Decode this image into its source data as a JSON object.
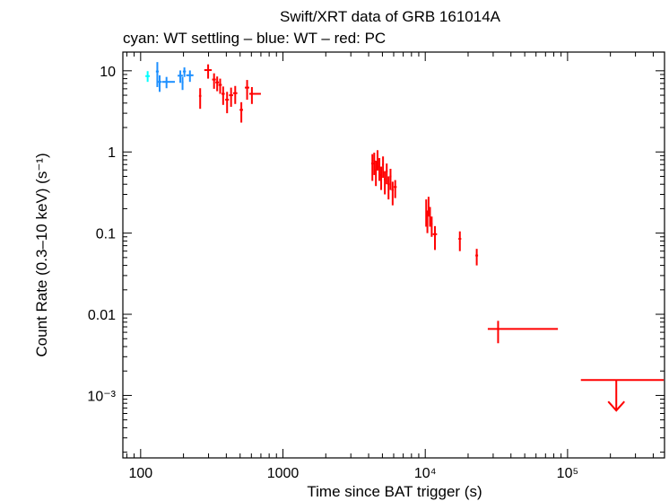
{
  "chart_data": {
    "type": "scatter",
    "title": "Swift/XRT data of GRB 161014A",
    "subtitle": "cyan: WT settling – blue: WT – red: PC",
    "xlabel": "Time since BAT trigger (s)",
    "ylabel": "Count Rate (0.3–10 keV) (s⁻¹)",
    "x_scale": "log",
    "y_scale": "log",
    "xlim": [
      75,
      480000
    ],
    "ylim": [
      0.00017,
      17
    ],
    "x_ticks": [
      {
        "value": 100,
        "label": "100"
      },
      {
        "value": 1000,
        "label": "1000"
      },
      {
        "value": 10000,
        "label": "10⁴"
      },
      {
        "value": 100000,
        "label": "10⁵"
      }
    ],
    "y_ticks": [
      {
        "value": 10,
        "label": "10"
      },
      {
        "value": 1,
        "label": "1"
      },
      {
        "value": 0.1,
        "label": "0.1"
      },
      {
        "value": 0.01,
        "label": "0.01"
      },
      {
        "value": 0.001,
        "label": "10⁻³"
      }
    ],
    "colors": {
      "wt_settling": "#00ffff",
      "wt": "#1e90ff",
      "pc": "#ff0000",
      "axes": "#000000"
    },
    "series": [
      {
        "key": "wt_settling",
        "points": [
          {
            "x": 112,
            "y": 8.6,
            "xerr": [
              4,
              4
            ],
            "yerr": [
              1.3,
              1.3
            ]
          }
        ]
      },
      {
        "key": "wt",
        "points": [
          {
            "x": 131,
            "y": 9.8,
            "xerr": [
              3,
              3
            ],
            "yerr": [
              3.5,
              3.0
            ]
          },
          {
            "x": 136,
            "y": 7.3,
            "xerr": [
              4,
              4
            ],
            "yerr": [
              1.8,
              1.5
            ]
          },
          {
            "x": 152,
            "y": 7.3,
            "xerr": [
              11,
              22
            ],
            "yerr": [
              1.2,
              1.1
            ]
          },
          {
            "x": 190,
            "y": 8.7,
            "xerr": [
              8,
              8
            ],
            "yerr": [
              1.6,
              1.4
            ]
          },
          {
            "x": 197,
            "y": 7.2,
            "xerr": [
              3,
              3
            ],
            "yerr": [
              1.4,
              1.2
            ]
          },
          {
            "x": 203,
            "y": 9.8,
            "xerr": [
              5,
              5
            ],
            "yerr": [
              1.4,
              1.2
            ]
          },
          {
            "x": 222,
            "y": 8.8,
            "xerr": [
              13,
              13
            ],
            "yerr": [
              1.5,
              1.3
            ]
          }
        ]
      },
      {
        "key": "pc",
        "points": [
          {
            "x": 262,
            "y": 4.9,
            "xerr": [
              5,
              5
            ],
            "yerr": [
              1.5,
              1.2
            ]
          },
          {
            "x": 298,
            "y": 10.2,
            "xerr": [
              18,
              18
            ],
            "yerr": [
              2.2,
              1.8
            ]
          },
          {
            "x": 328,
            "y": 7.8,
            "xerr": [
              10,
              10
            ],
            "yerr": [
              1.8,
              1.5
            ]
          },
          {
            "x": 345,
            "y": 7.2,
            "xerr": [
              10,
              10
            ],
            "yerr": [
              1.6,
              1.3
            ]
          },
          {
            "x": 362,
            "y": 6.7,
            "xerr": [
              10,
              10
            ],
            "yerr": [
              1.5,
              1.3
            ]
          },
          {
            "x": 380,
            "y": 5.2,
            "xerr": [
              10,
              10
            ],
            "yerr": [
              1.4,
              1.2
            ]
          },
          {
            "x": 405,
            "y": 4.4,
            "xerr": [
              12,
              12
            ],
            "yerr": [
              1.4,
              1.1
            ]
          },
          {
            "x": 432,
            "y": 5.0,
            "xerr": [
              14,
              14
            ],
            "yerr": [
              1.4,
              1.2
            ]
          },
          {
            "x": 462,
            "y": 5.3,
            "xerr": [
              16,
              16
            ],
            "yerr": [
              1.4,
              1.2
            ]
          },
          {
            "x": 510,
            "y": 3.3,
            "xerr": [
              14,
              14
            ],
            "yerr": [
              1.0,
              0.8
            ]
          },
          {
            "x": 560,
            "y": 6.2,
            "xerr": [
              20,
              20
            ],
            "yerr": [
              1.8,
              1.5
            ]
          },
          {
            "x": 605,
            "y": 5.2,
            "xerr": [
              25,
              95
            ],
            "yerr": [
              1.3,
              1.1
            ]
          },
          {
            "x": 4250,
            "y": 0.72,
            "xerr": [
              80,
              80
            ],
            "yerr": [
              0.28,
              0.22
            ]
          },
          {
            "x": 4380,
            "y": 0.78,
            "xerr": [
              60,
              60
            ],
            "yerr": [
              0.26,
              0.2
            ]
          },
          {
            "x": 4500,
            "y": 0.6,
            "xerr": [
              60,
              60
            ],
            "yerr": [
              0.22,
              0.18
            ]
          },
          {
            "x": 4620,
            "y": 0.85,
            "xerr": [
              60,
              60
            ],
            "yerr": [
              0.26,
              0.2
            ]
          },
          {
            "x": 4760,
            "y": 0.66,
            "xerr": [
              60,
              60
            ],
            "yerr": [
              0.22,
              0.18
            ]
          },
          {
            "x": 4900,
            "y": 0.52,
            "xerr": [
              70,
              70
            ],
            "yerr": [
              0.18,
              0.14
            ]
          },
          {
            "x": 5050,
            "y": 0.7,
            "xerr": [
              70,
              70
            ],
            "yerr": [
              0.22,
              0.18
            ]
          },
          {
            "x": 5200,
            "y": 0.46,
            "xerr": [
              70,
              70
            ],
            "yerr": [
              0.16,
              0.12
            ]
          },
          {
            "x": 5360,
            "y": 0.58,
            "xerr": [
              80,
              80
            ],
            "yerr": [
              0.18,
              0.14
            ]
          },
          {
            "x": 5520,
            "y": 0.4,
            "xerr": [
              80,
              80
            ],
            "yerr": [
              0.14,
              0.1
            ]
          },
          {
            "x": 5700,
            "y": 0.5,
            "xerr": [
              90,
              90
            ],
            "yerr": [
              0.16,
              0.12
            ]
          },
          {
            "x": 5900,
            "y": 0.34,
            "xerr": [
              100,
              100
            ],
            "yerr": [
              0.12,
              0.09
            ]
          },
          {
            "x": 6150,
            "y": 0.37,
            "xerr": [
              150,
              150
            ],
            "yerr": [
              0.1,
              0.08
            ]
          },
          {
            "x": 10150,
            "y": 0.2,
            "xerr": [
              100,
              100
            ],
            "yerr": [
              0.08,
              0.06
            ]
          },
          {
            "x": 10350,
            "y": 0.15,
            "xerr": [
              100,
              100
            ],
            "yerr": [
              0.05,
              0.04
            ]
          },
          {
            "x": 10550,
            "y": 0.23,
            "xerr": [
              100,
              100
            ],
            "yerr": [
              0.07,
              0.05
            ]
          },
          {
            "x": 10800,
            "y": 0.17,
            "xerr": [
              120,
              120
            ],
            "yerr": [
              0.05,
              0.04
            ]
          },
          {
            "x": 11100,
            "y": 0.13,
            "xerr": [
              150,
              150
            ],
            "yerr": [
              0.04,
              0.03
            ]
          },
          {
            "x": 11700,
            "y": 0.097,
            "xerr": [
              400,
              400
            ],
            "yerr": [
              0.035,
              0.025
            ]
          },
          {
            "x": 17500,
            "y": 0.085,
            "xerr": [
              400,
              400
            ],
            "yerr": [
              0.025,
              0.02
            ]
          },
          {
            "x": 23000,
            "y": 0.053,
            "xerr": [
              500,
              500
            ],
            "yerr": [
              0.013,
              0.011
            ]
          },
          {
            "x": 32500,
            "y": 0.0066,
            "xerr": [
              5000,
              53000
            ],
            "yerr": [
              0.0022,
              0.0017
            ]
          }
        ]
      },
      {
        "key": "pc_upper_limit",
        "upper_limit": true,
        "points": [
          {
            "x": 220000,
            "y": 0.00155,
            "xerr": [
              96000,
              254000
            ]
          }
        ]
      }
    ]
  }
}
